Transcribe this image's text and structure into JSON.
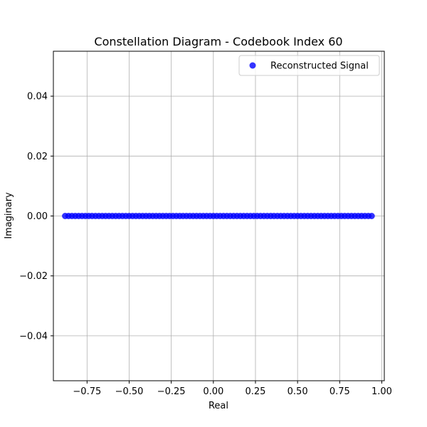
{
  "chart_data": {
    "type": "scatter",
    "title": "Constellation Diagram - Codebook Index 60",
    "xlabel": "Real",
    "ylabel": "Imaginary",
    "xlim": [
      -0.95,
      1.015
    ],
    "ylim": [
      -0.055,
      0.055
    ],
    "grid": true,
    "legend_position": "upper right",
    "x_tick_values": [
      -0.75,
      -0.5,
      -0.25,
      0.0,
      0.25,
      0.5,
      0.75,
      1.0
    ],
    "x_tick_labels": [
      "−0.75",
      "−0.50",
      "−0.25",
      "0.00",
      "0.25",
      "0.50",
      "0.75",
      "1.00"
    ],
    "y_tick_values": [
      -0.04,
      -0.02,
      0.0,
      0.02,
      0.04
    ],
    "y_tick_labels": [
      "−0.04",
      "−0.02",
      "0.00",
      "0.02",
      "0.04"
    ],
    "series": [
      {
        "name": "Reconstructed Signal",
        "color": "#0000ff",
        "alpha": 0.8,
        "points": [
          [
            -0.88,
            0.0
          ],
          [
            -0.86,
            0.0
          ],
          [
            -0.84,
            0.0
          ],
          [
            -0.82,
            0.0
          ],
          [
            -0.8,
            0.0
          ],
          [
            -0.78,
            0.0
          ],
          [
            -0.76,
            0.0
          ],
          [
            -0.74,
            0.0
          ],
          [
            -0.72,
            0.0
          ],
          [
            -0.7,
            0.0
          ],
          [
            -0.68,
            0.0
          ],
          [
            -0.66,
            0.0
          ],
          [
            -0.64,
            0.0
          ],
          [
            -0.62,
            0.0
          ],
          [
            -0.6,
            0.0
          ],
          [
            -0.58,
            0.0
          ],
          [
            -0.56,
            0.0
          ],
          [
            -0.54,
            0.0
          ],
          [
            -0.52,
            0.0
          ],
          [
            -0.5,
            0.0
          ],
          [
            -0.48,
            0.0
          ],
          [
            -0.46,
            0.0
          ],
          [
            -0.44,
            0.0
          ],
          [
            -0.42,
            0.0
          ],
          [
            -0.4,
            0.0
          ],
          [
            -0.38,
            0.0
          ],
          [
            -0.36,
            0.0
          ],
          [
            -0.34,
            0.0
          ],
          [
            -0.32,
            0.0
          ],
          [
            -0.3,
            0.0
          ],
          [
            -0.28,
            0.0
          ],
          [
            -0.26,
            0.0
          ],
          [
            -0.24,
            0.0
          ],
          [
            -0.22,
            0.0
          ],
          [
            -0.2,
            0.0
          ],
          [
            -0.18,
            0.0
          ],
          [
            -0.16,
            0.0
          ],
          [
            -0.14,
            0.0
          ],
          [
            -0.12,
            0.0
          ],
          [
            -0.1,
            0.0
          ],
          [
            -0.08,
            0.0
          ],
          [
            -0.06,
            0.0
          ],
          [
            -0.04,
            0.0
          ],
          [
            -0.02,
            0.0
          ],
          [
            0.0,
            0.0
          ],
          [
            0.02,
            0.0
          ],
          [
            0.04,
            0.0
          ],
          [
            0.06,
            0.0
          ],
          [
            0.08,
            0.0
          ],
          [
            0.1,
            0.0
          ],
          [
            0.12,
            0.0
          ],
          [
            0.14,
            0.0
          ],
          [
            0.16,
            0.0
          ],
          [
            0.18,
            0.0
          ],
          [
            0.2,
            0.0
          ],
          [
            0.22,
            0.0
          ],
          [
            0.24,
            0.0
          ],
          [
            0.26,
            0.0
          ],
          [
            0.28,
            0.0
          ],
          [
            0.3,
            0.0
          ],
          [
            0.32,
            0.0
          ],
          [
            0.34,
            0.0
          ],
          [
            0.36,
            0.0
          ],
          [
            0.38,
            0.0
          ],
          [
            0.4,
            0.0
          ],
          [
            0.42,
            0.0
          ],
          [
            0.44,
            0.0
          ],
          [
            0.46,
            0.0
          ],
          [
            0.48,
            0.0
          ],
          [
            0.5,
            0.0
          ],
          [
            0.52,
            0.0
          ],
          [
            0.54,
            0.0
          ],
          [
            0.56,
            0.0
          ],
          [
            0.58,
            0.0
          ],
          [
            0.6,
            0.0
          ],
          [
            0.62,
            0.0
          ],
          [
            0.64,
            0.0
          ],
          [
            0.66,
            0.0
          ],
          [
            0.68,
            0.0
          ],
          [
            0.7,
            0.0
          ],
          [
            0.72,
            0.0
          ],
          [
            0.74,
            0.0
          ],
          [
            0.76,
            0.0
          ],
          [
            0.78,
            0.0
          ],
          [
            0.8,
            0.0
          ],
          [
            0.82,
            0.0
          ],
          [
            0.84,
            0.0
          ],
          [
            0.86,
            0.0
          ],
          [
            0.88,
            0.0
          ],
          [
            0.9,
            0.0
          ],
          [
            0.92,
            0.0
          ],
          [
            0.94,
            0.0
          ]
        ]
      }
    ]
  }
}
